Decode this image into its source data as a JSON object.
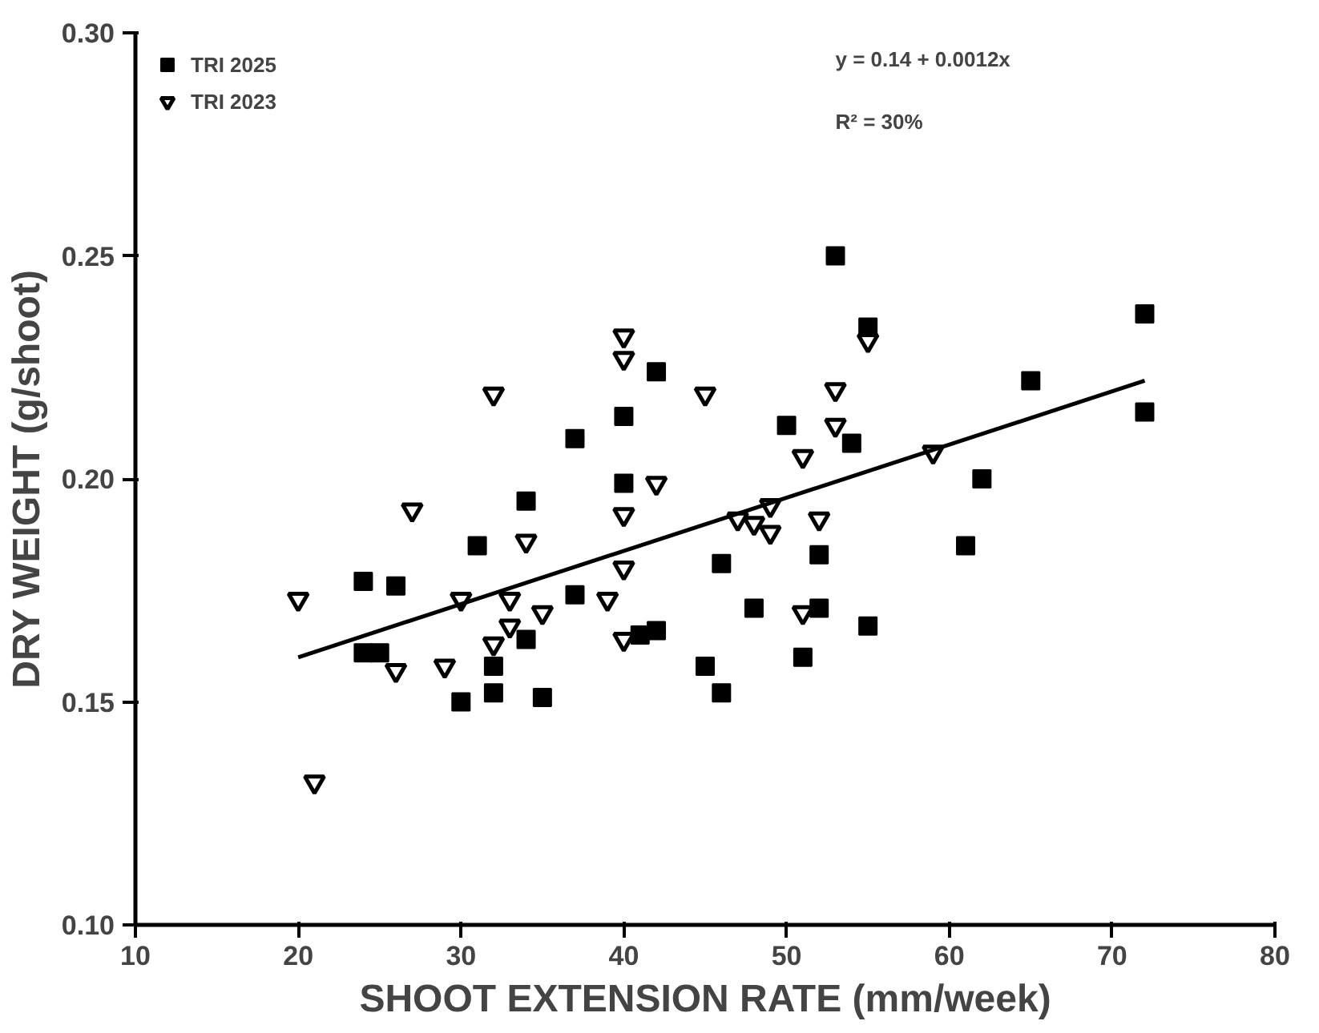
{
  "chart_data": {
    "type": "scatter",
    "xlabel": "SHOOT EXTENSION RATE (mm/week)",
    "ylabel": "DRY WEIGHT (g/shoot)",
    "xlim": [
      10,
      80
    ],
    "ylim": [
      0.1,
      0.3
    ],
    "xticks": [
      10,
      20,
      30,
      40,
      50,
      60,
      70,
      80
    ],
    "yticks": [
      {
        "value": 0.1,
        "label": "0.10"
      },
      {
        "value": 0.15,
        "label": "0.15"
      },
      {
        "value": 0.2,
        "label": "0.20"
      },
      {
        "value": 0.25,
        "label": "0.25"
      },
      {
        "value": 0.3,
        "label": "0.30"
      }
    ],
    "grid": false,
    "legend": "top left",
    "annotations": [
      "y = 0.14 + 0.0012x",
      "R² = 30%"
    ],
    "series": [
      {
        "name": "TRI 2025",
        "color": "#000000",
        "marker": "square",
        "x": [
          24,
          24,
          25,
          26,
          30,
          31,
          32,
          32,
          34,
          34,
          35,
          37,
          37,
          40,
          40,
          41,
          42,
          42,
          45,
          46,
          46,
          48,
          50,
          51,
          52,
          52,
          53,
          54,
          55,
          55,
          61,
          62,
          65,
          72,
          72
        ],
        "values": [
          0.177,
          0.161,
          0.161,
          0.176,
          0.15,
          0.185,
          0.158,
          0.152,
          0.195,
          0.164,
          0.151,
          0.209,
          0.174,
          0.214,
          0.199,
          0.165,
          0.166,
          0.224,
          0.158,
          0.181,
          0.152,
          0.171,
          0.212,
          0.16,
          0.183,
          0.171,
          0.25,
          0.208,
          0.234,
          0.167,
          0.185,
          0.2,
          0.222,
          0.237,
          0.215
        ]
      },
      {
        "name": "TRI 2023",
        "color": "#000000",
        "marker": "triangle",
        "x": [
          20,
          21,
          26,
          27,
          29,
          30,
          32,
          32,
          33,
          33,
          34,
          35,
          39,
          40,
          40,
          40,
          40,
          40,
          42,
          45,
          47,
          48,
          49,
          49,
          51,
          51,
          52,
          53,
          53,
          55,
          59
        ],
        "values": [
          0.173,
          0.132,
          0.157,
          0.193,
          0.158,
          0.173,
          0.219,
          0.163,
          0.173,
          0.167,
          0.186,
          0.17,
          0.173,
          0.232,
          0.227,
          0.192,
          0.18,
          0.164,
          0.199,
          0.219,
          0.191,
          0.19,
          0.194,
          0.188,
          0.205,
          0.17,
          0.191,
          0.22,
          0.212,
          0.231,
          0.206
        ]
      },
      {
        "type": "line",
        "color": "#000000",
        "marker": "none",
        "x": [
          20,
          72
        ],
        "values": [
          0.16,
          0.222
        ]
      }
    ]
  }
}
